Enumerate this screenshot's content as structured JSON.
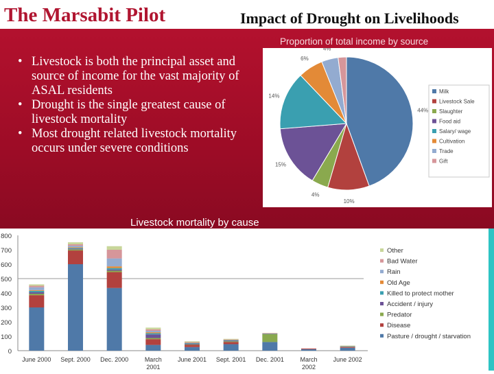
{
  "header": {
    "left_title": "The Marsabit Pilot",
    "right_title": "Impact of Drought on Livelihoods"
  },
  "bullets": [
    "Livestock is both the principal asset and source of income for the vast majority of ASAL residents",
    "Drought is the single greatest cause of livestock mortality",
    "Most drought related livestock mortality occurs under severe conditions"
  ],
  "colors": {
    "accent_red": "#b01530",
    "panel_red": "#9d0c26",
    "strip_teal": "#2ec4c4"
  },
  "chart_data": [
    {
      "type": "pie",
      "title": "Proportion of total income by source",
      "labels": [
        "Milk",
        "Livestock Sale",
        "Slaughter",
        "Food aid",
        "Salary/ wage",
        "Cultivation",
        "Trade",
        "Gift"
      ],
      "values": [
        44,
        10,
        4,
        15,
        14,
        6,
        4,
        2
      ],
      "value_labels": [
        "44%",
        "10%",
        "4%",
        "15%",
        "14%",
        "6%",
        "4%",
        "2%"
      ],
      "colors": [
        "#4f79a8",
        "#b2413e",
        "#8aa94e",
        "#6c5296",
        "#3a9fb0",
        "#e38a37",
        "#93abd0",
        "#d6969a"
      ],
      "legend": "right"
    },
    {
      "type": "bar",
      "stacked": true,
      "title": "Livestock mortality by cause",
      "categories": [
        "June 2000",
        "Sept. 2000",
        "Dec. 2000",
        "March 2001",
        "June 2001",
        "Sept. 2001",
        "Dec. 2001",
        "March 2002",
        "June 2002"
      ],
      "category_lines": [
        [
          "June 2000"
        ],
        [
          "Sept. 2000"
        ],
        [
          "Dec. 2000"
        ],
        [
          "March",
          "2001"
        ],
        [
          "June 2001"
        ],
        [
          "Sept. 2001"
        ],
        [
          "Dec. 2001"
        ],
        [
          "March",
          "2002"
        ],
        [
          "June 2002"
        ]
      ],
      "ylim": [
        0,
        800
      ],
      "yticks": [
        "0",
        "100",
        "200",
        "300",
        "400",
        "500",
        "600",
        "700",
        "800"
      ],
      "legend_order": [
        "Other",
        "Bad Water",
        "Rain",
        "Old Age",
        "Killed to protect mother",
        "Accident / injury",
        "Predator",
        "Disease",
        "Pasture / drought / starvation"
      ],
      "series": [
        {
          "name": "Pasture / drought / starvation",
          "color": "#4f79a8",
          "values": [
            300,
            600,
            435,
            40,
            25,
            45,
            60,
            10,
            20
          ]
        },
        {
          "name": "Disease",
          "color": "#b2413e",
          "values": [
            85,
            95,
            110,
            40,
            15,
            15,
            0,
            5,
            5
          ]
        },
        {
          "name": "Predator",
          "color": "#8aa94e",
          "values": [
            10,
            8,
            10,
            8,
            3,
            5,
            55,
            0,
            2
          ]
        },
        {
          "name": "Accident / injury",
          "color": "#6c5296",
          "values": [
            10,
            5,
            8,
            25,
            5,
            4,
            3,
            0,
            2
          ]
        },
        {
          "name": "Killed to protect mother",
          "color": "#3a9fb0",
          "values": [
            10,
            5,
            10,
            8,
            4,
            3,
            2,
            0,
            2
          ]
        },
        {
          "name": "Old Age",
          "color": "#e38a37",
          "values": [
            5,
            5,
            12,
            7,
            3,
            2,
            2,
            0,
            2
          ]
        },
        {
          "name": "Rain",
          "color": "#93abd0",
          "values": [
            20,
            10,
            55,
            10,
            2,
            2,
            0,
            0,
            0
          ]
        },
        {
          "name": "Bad Water",
          "color": "#d6969a",
          "values": [
            10,
            10,
            60,
            10,
            3,
            2,
            0,
            0,
            0
          ]
        },
        {
          "name": "Other",
          "color": "#c8d69a",
          "values": [
            10,
            14,
            25,
            12,
            5,
            4,
            0,
            0,
            2
          ]
        }
      ]
    }
  ]
}
